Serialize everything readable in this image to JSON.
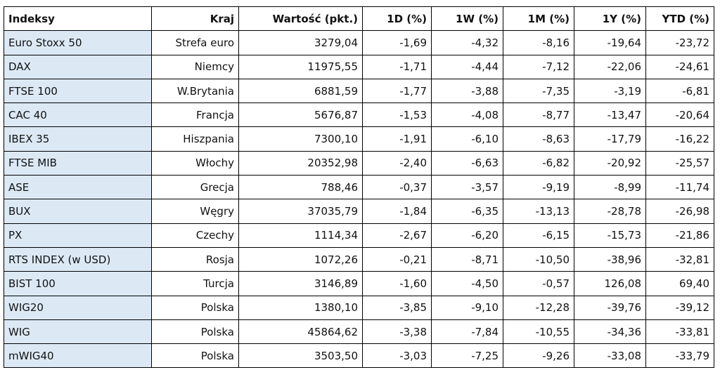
{
  "headers": [
    "Indeksy",
    "Kraj",
    "Wartość (pkt.)",
    "1D (%)",
    "1W (%)",
    "1M (%)",
    "1Y (%)",
    "YTD (%)"
  ],
  "rows": [
    [
      "Euro Stoxx 50",
      "Strefa euro",
      "3279,04",
      "-1,69",
      "-4,32",
      "-8,16",
      "-19,64",
      "-23,72"
    ],
    [
      "DAX",
      "Niemcy",
      "11975,55",
      "-1,71",
      "-4,44",
      "-7,12",
      "-22,06",
      "-24,61"
    ],
    [
      "FTSE 100",
      "W.Brytania",
      "6881,59",
      "-1,77",
      "-3,88",
      "-7,35",
      "-3,19",
      "-6,81"
    ],
    [
      "CAC 40",
      "Francja",
      "5676,87",
      "-1,53",
      "-4,08",
      "-8,77",
      "-13,47",
      "-20,64"
    ],
    [
      "IBEX 35",
      "Hiszpania",
      "7300,10",
      "-1,91",
      "-6,10",
      "-8,63",
      "-17,79",
      "-16,22"
    ],
    [
      "FTSE MIB",
      "Włochy",
      "20352,98",
      "-2,40",
      "-6,63",
      "-6,82",
      "-20,92",
      "-25,57"
    ],
    [
      "ASE",
      "Grecja",
      "788,46",
      "-0,37",
      "-3,57",
      "-9,19",
      "-8,99",
      "-11,74"
    ],
    [
      "BUX",
      "Węgry",
      "37035,79",
      "-1,84",
      "-6,35",
      "-13,13",
      "-28,78",
      "-26,98"
    ],
    [
      "PX",
      "Czechy",
      "1114,34",
      "-2,67",
      "-6,20",
      "-6,15",
      "-15,73",
      "-21,86"
    ],
    [
      "RTS INDEX (w USD)",
      "Rosja",
      "1072,26",
      "-0,21",
      "-8,71",
      "-10,50",
      "-38,96",
      "-32,81"
    ],
    [
      "BIST 100",
      "Turcja",
      "3146,89",
      "-1,60",
      "-4,50",
      "-0,57",
      "126,08",
      "69,40"
    ],
    [
      "WIG20",
      "Polska",
      "1380,10",
      "-3,85",
      "-9,10",
      "-12,28",
      "-39,76",
      "-39,12"
    ],
    [
      "WIG",
      "Polska",
      "45864,62",
      "-3,38",
      "-7,84",
      "-10,55",
      "-34,36",
      "-33,81"
    ],
    [
      "mWIG40",
      "Polska",
      "3503,50",
      "-3,03",
      "-7,25",
      "-9,26",
      "-33,08",
      "-33,79"
    ]
  ],
  "colors": {
    "name_cell_bg": "#dce9f5",
    "border": "#000000"
  }
}
